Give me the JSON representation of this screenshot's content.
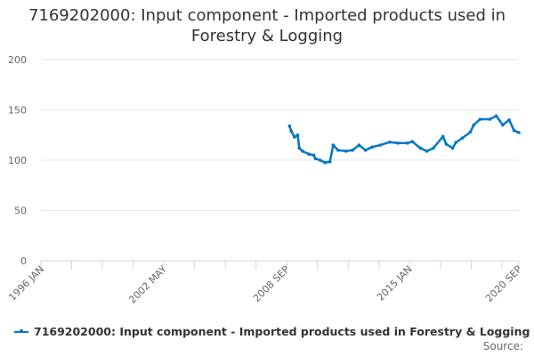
{
  "chart_data": {
    "type": "line",
    "title": "7169202000: Input component - Imported products used in Forestry & Logging",
    "xlabel": "",
    "ylabel": "",
    "ylim": [
      0,
      200
    ],
    "yticks": [
      0,
      50,
      100,
      150,
      200
    ],
    "xlim": [
      "1996-01",
      "2020-09"
    ],
    "xtick_labels": [
      {
        "date": "1996-01",
        "label": "1996 JAN"
      },
      {
        "date": "2002-05",
        "label": "2002 MAY"
      },
      {
        "date": "2008-09",
        "label": "2008 SEP"
      },
      {
        "date": "2015-01",
        "label": "2015 JAN"
      },
      {
        "date": "2020-09",
        "label": "2020 SEP"
      }
    ],
    "grid": true,
    "legend": "bottom-left",
    "color": "#0077c8",
    "series": [
      {
        "name": "7169202000: Input component - Imported products used in Forestry & Logging",
        "x": [
          "2008-11",
          "2008-12",
          "2009-02",
          "2009-04",
          "2009-05",
          "2009-07",
          "2009-11",
          "2010-02",
          "2010-03",
          "2010-06",
          "2010-09",
          "2010-12",
          "2011-02",
          "2011-05",
          "2011-10",
          "2012-02",
          "2012-06",
          "2012-10",
          "2013-02",
          "2013-07",
          "2014-01",
          "2014-06",
          "2014-12",
          "2015-03",
          "2015-08",
          "2015-12",
          "2016-04",
          "2016-10",
          "2016-12",
          "2017-04",
          "2017-06",
          "2017-10",
          "2018-03",
          "2018-05",
          "2018-09",
          "2019-03",
          "2019-07",
          "2019-11",
          "2020-03",
          "2020-06",
          "2020-09"
        ],
        "values": [
          134,
          129,
          123,
          125,
          112,
          109,
          106,
          105,
          101.5,
          100,
          97.6,
          98.5,
          115,
          110,
          109,
          110,
          115,
          110,
          113,
          115,
          118,
          117,
          117,
          118.5,
          112,
          109,
          112,
          123.6,
          116,
          112,
          117.7,
          122,
          128,
          135,
          140.7,
          140.7,
          144,
          135,
          140,
          129.5,
          127.5
        ]
      }
    ]
  },
  "source_label": "Source:"
}
